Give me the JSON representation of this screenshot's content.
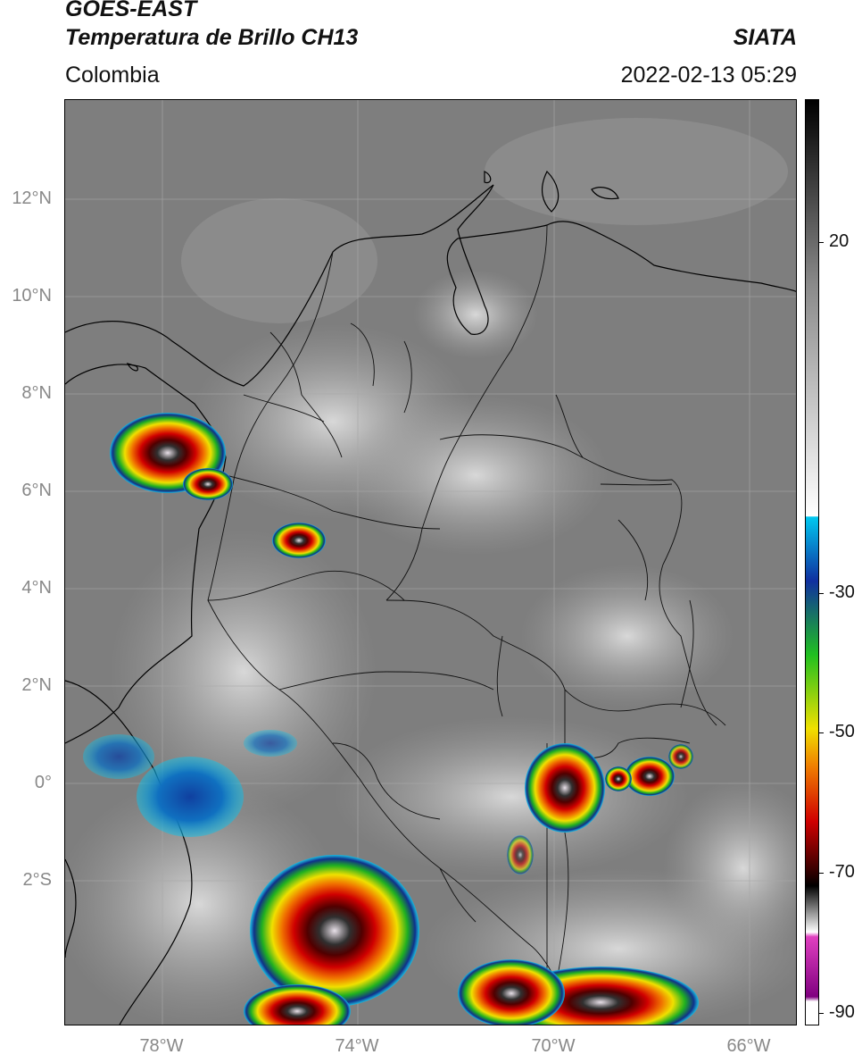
{
  "header": {
    "title_line1": "GOES-EAST",
    "title_line2": "Temperatura de Brillo CH13",
    "region": "Colombia",
    "brand": "SIATA",
    "datetime": "2022-02-13 05:29"
  },
  "map": {
    "lat_labels": [
      "12°N",
      "10°N",
      "8°N",
      "6°N",
      "4°N",
      "2°N",
      "0°",
      "2°S"
    ],
    "lon_labels": [
      "78°W",
      "74°W",
      "70°W",
      "66°W"
    ],
    "background_color": "#8a8a8a",
    "gridlines": true
  },
  "colorbar": {
    "labels": [
      "20",
      "-30",
      "-50",
      "-70",
      "-90"
    ],
    "colors": {
      "black": "#000000",
      "gray_mid": "#8a8a8a",
      "white": "#ffffff",
      "cyan": "#00c8f0",
      "blue": "#1030a0",
      "green": "#20c020",
      "yellow": "#f0e000",
      "orange": "#f08000",
      "red": "#d00000",
      "dark_red": "#400000",
      "magenta": "#e040c0",
      "purple": "#800080"
    }
  }
}
